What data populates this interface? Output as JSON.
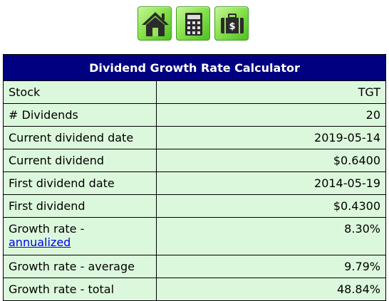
{
  "toolbar": {
    "buttons": [
      {
        "icon": "home-icon"
      },
      {
        "icon": "calculator-icon"
      },
      {
        "icon": "briefcase-dollar-icon"
      }
    ]
  },
  "calculator": {
    "title": "Dividend Growth Rate Calculator",
    "rows": [
      {
        "label": "Stock",
        "value": "TGT"
      },
      {
        "label": "# Dividends",
        "value": "20"
      },
      {
        "label": "Current dividend date",
        "value": "2019-05-14"
      },
      {
        "label": "Current dividend",
        "value": "$0.6400"
      },
      {
        "label": "First dividend date",
        "value": "2014-05-19"
      },
      {
        "label": "First dividend",
        "value": "$0.4300"
      },
      {
        "label": "Growth rate -",
        "link": "annualized",
        "value": "8.30%"
      },
      {
        "label": "Growth rate - average",
        "value": "9.79%"
      },
      {
        "label": "Growth rate - total",
        "value": "48.84%"
      }
    ]
  },
  "colors": {
    "header_bg": "#000080",
    "row_bg": "#dcf8dc",
    "button_green": "#8be34f"
  }
}
